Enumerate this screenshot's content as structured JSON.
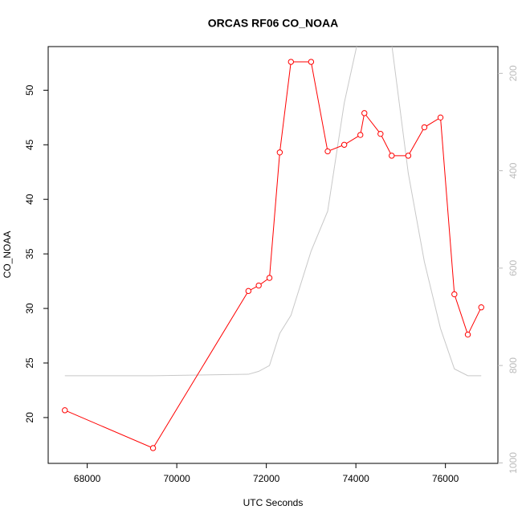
{
  "chart_data": {
    "type": "line",
    "title": "ORCAS RF06 CO_NOAA",
    "xlabel": "UTC Seconds",
    "ylabel": "CO_NOAA",
    "x": [
      67500,
      69470,
      71600,
      71830,
      72070,
      72300,
      72550,
      73000,
      73370,
      73740,
      74100,
      74190,
      74550,
      74800,
      75170,
      75530,
      75890,
      76200,
      76500,
      76800
    ],
    "series": [
      {
        "color": "#ff0000",
        "values": [
          20.67,
          17.2,
          31.6,
          32.1,
          32.8,
          44.3,
          52.6,
          52.6,
          44.4,
          45.0,
          45.9,
          47.9,
          46.0,
          44.0,
          44.0,
          46.6,
          47.5,
          31.3,
          27.6,
          30.1
        ]
      },
      {
        "color": "#c8c8c8",
        "axis": "y2",
        "values": [
          821,
          821,
          818,
          812,
          800,
          734,
          697,
          565,
          483,
          261,
          110,
          105,
          112,
          140,
          405,
          587,
          724,
          807,
          821,
          821
        ]
      }
    ],
    "xlim": [
      67128,
      77172
    ],
    "ylim": [
      15.8,
      54.0
    ],
    "y2lim": [
      1001,
      145
    ],
    "xticks": [
      68000,
      70000,
      72000,
      74000,
      76000
    ],
    "yticks": [
      20,
      25,
      30,
      35,
      40,
      45,
      50
    ],
    "y2ticks": [
      200,
      400,
      600,
      800,
      1000
    ]
  }
}
